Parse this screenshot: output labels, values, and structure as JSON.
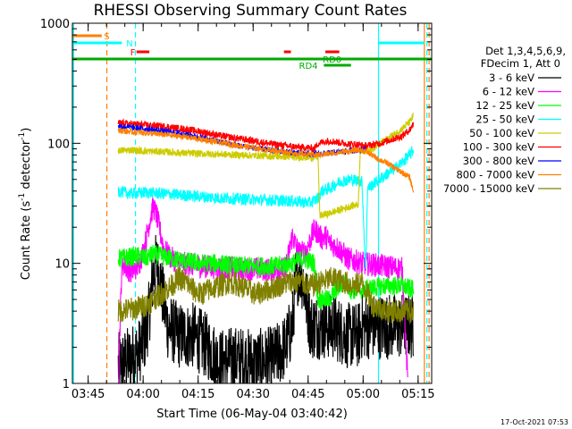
{
  "chart_data": {
    "type": "line",
    "title": "RHESSI Observing Summary Count Rates",
    "xlabel": "Start Time (06-May-04 03:40:42)",
    "ylabel": "Count Rate (s⁻¹ detector⁻¹)",
    "ylabel_parts": {
      "main": "Count Rate (s",
      "sup1": "-1",
      "mid": " detector",
      "sup2": "-1",
      "end": ")"
    },
    "yscale": "log",
    "ylim": [
      1,
      1000
    ],
    "xlim_minutes": [
      0,
      98
    ],
    "x_unit": "minutes after 03:40:42",
    "grid": false,
    "legend_position": "right",
    "legend_header": [
      "Det 1,3,4,5,6,9,",
      "FDecim 1, Att 0"
    ],
    "x_ticks": [
      {
        "label": "03:45",
        "min": 4.3
      },
      {
        "label": "04:00",
        "min": 19.3
      },
      {
        "label": "04:15",
        "min": 34.3
      },
      {
        "label": "04:30",
        "min": 49.3
      },
      {
        "label": "04:45",
        "min": 64.3
      },
      {
        "label": "05:00",
        "min": 79.3
      },
      {
        "label": "05:15",
        "min": 94.3
      }
    ],
    "y_ticks": [
      {
        "label": "1",
        "value": 1
      },
      {
        "label": "10",
        "value": 10
      },
      {
        "label": "100",
        "value": 100
      },
      {
        "label": "1000",
        "value": 1000
      }
    ],
    "series": [
      {
        "name": "3 - 6 keV",
        "color": "#000000",
        "noise": 0.28,
        "points": [
          [
            12.5,
            1.4
          ],
          [
            18,
            1.8
          ],
          [
            20,
            2.5
          ],
          [
            21,
            4
          ],
          [
            22,
            8
          ],
          [
            23,
            10
          ],
          [
            24,
            7
          ],
          [
            25,
            4.5
          ],
          [
            26,
            3
          ],
          [
            29,
            2.5
          ],
          [
            33,
            2.5
          ],
          [
            37,
            2
          ],
          [
            40,
            1.5
          ],
          [
            44,
            1.6
          ],
          [
            50,
            1.5
          ],
          [
            55,
            1.6
          ],
          [
            58,
            2
          ],
          [
            60,
            3
          ],
          [
            61,
            8
          ],
          [
            62,
            9
          ],
          [
            63,
            7
          ],
          [
            64,
            4.5
          ],
          [
            65,
            3
          ],
          [
            69,
            3
          ],
          [
            71,
            3
          ],
          [
            75,
            2.5
          ],
          [
            78,
            2.5
          ],
          [
            79,
            3
          ],
          [
            90,
            3
          ],
          [
            93,
            3
          ]
        ]
      },
      {
        "name": "6 - 12 keV",
        "color": "#ff00ff",
        "noise": 0.1,
        "points": [
          [
            12.5,
            1
          ],
          [
            13.5,
            10
          ],
          [
            16,
            8.5
          ],
          [
            18,
            9.5
          ],
          [
            19.5,
            13
          ],
          [
            21,
            22
          ],
          [
            22,
            30
          ],
          [
            23,
            25
          ],
          [
            24,
            18
          ],
          [
            25,
            13
          ],
          [
            27,
            11
          ],
          [
            30,
            10
          ],
          [
            35,
            9.5
          ],
          [
            40,
            9.2
          ],
          [
            45,
            9
          ],
          [
            50,
            9
          ],
          [
            55,
            8.8
          ],
          [
            58,
            9
          ],
          [
            59,
            12
          ],
          [
            60,
            17
          ],
          [
            61,
            14
          ],
          [
            62,
            12
          ],
          [
            64,
            13
          ],
          [
            65,
            16
          ],
          [
            66,
            19
          ],
          [
            67,
            18
          ],
          [
            68,
            16
          ],
          [
            69,
            17
          ],
          [
            70,
            15
          ],
          [
            73,
            13
          ],
          [
            75,
            11
          ],
          [
            79,
            10
          ],
          [
            85,
            9.5
          ],
          [
            90,
            9
          ],
          [
            91,
            2
          ],
          [
            91.5,
            1
          ]
        ]
      },
      {
        "name": "12 - 25 keV",
        "color": "#00ff00",
        "noise": 0.08,
        "points": [
          [
            12.5,
            11
          ],
          [
            18,
            11.5
          ],
          [
            20,
            11
          ],
          [
            22,
            12
          ],
          [
            24,
            11.5
          ],
          [
            27,
            11
          ],
          [
            30,
            10.5
          ],
          [
            35,
            10
          ],
          [
            40,
            10
          ],
          [
            45,
            9.5
          ],
          [
            50,
            9.5
          ],
          [
            55,
            9.5
          ],
          [
            60,
            10
          ],
          [
            63,
            11
          ],
          [
            66,
            10
          ],
          [
            67,
            5
          ],
          [
            68,
            5
          ],
          [
            70,
            5
          ],
          [
            72,
            6
          ],
          [
            74,
            7
          ],
          [
            76,
            6
          ],
          [
            79,
            6
          ],
          [
            85,
            6.5
          ],
          [
            90,
            6.5
          ],
          [
            93,
            6
          ]
        ]
      },
      {
        "name": "25 - 50 keV",
        "color": "#00ffff",
        "noise": 0.05,
        "points": [
          [
            12.5,
            40
          ],
          [
            16,
            38
          ],
          [
            20,
            39
          ],
          [
            25,
            38
          ],
          [
            30,
            37
          ],
          [
            35,
            36
          ],
          [
            40,
            35
          ],
          [
            45,
            34.5
          ],
          [
            50,
            34
          ],
          [
            55,
            33.5
          ],
          [
            60,
            33
          ],
          [
            65,
            32
          ],
          [
            67,
            35
          ],
          [
            68,
            40
          ],
          [
            70,
            42
          ],
          [
            73,
            48
          ],
          [
            76,
            50
          ],
          [
            79,
            48
          ],
          [
            80,
            8
          ],
          [
            80.5,
            42
          ],
          [
            83,
            48
          ],
          [
            86,
            56
          ],
          [
            89,
            65
          ],
          [
            92,
            80
          ],
          [
            93,
            88
          ]
        ]
      },
      {
        "name": "50 - 100 keV",
        "color": "#cccc00",
        "noise": 0.03,
        "points": [
          [
            12.5,
            87
          ],
          [
            16,
            88
          ],
          [
            20,
            86
          ],
          [
            25,
            85
          ],
          [
            30,
            83
          ],
          [
            35,
            82
          ],
          [
            40,
            81
          ],
          [
            45,
            80
          ],
          [
            50,
            79
          ],
          [
            55,
            78
          ],
          [
            60,
            77
          ],
          [
            65,
            76
          ],
          [
            67,
            77
          ],
          [
            67.5,
            25
          ],
          [
            70,
            26
          ],
          [
            73,
            28
          ],
          [
            76,
            30
          ],
          [
            78,
            31
          ],
          [
            78.5,
            86
          ],
          [
            82,
            90
          ],
          [
            86,
            110
          ],
          [
            89,
            125
          ],
          [
            92,
            150
          ],
          [
            93,
            170
          ]
        ]
      },
      {
        "name": "100 - 300 keV",
        "color": "#ff0000",
        "noise": 0.03,
        "points": [
          [
            12.5,
            148
          ],
          [
            16,
            145
          ],
          [
            20,
            142
          ],
          [
            25,
            138
          ],
          [
            30,
            132
          ],
          [
            35,
            125
          ],
          [
            40,
            116
          ],
          [
            45,
            110
          ],
          [
            50,
            104
          ],
          [
            55,
            98
          ],
          [
            60,
            94
          ],
          [
            64,
            92
          ],
          [
            66,
            90
          ],
          [
            67,
            100
          ],
          [
            70,
            105
          ],
          [
            74,
            100
          ],
          [
            78,
            97
          ],
          [
            80,
            95
          ],
          [
            84,
            100
          ],
          [
            88,
            110
          ],
          [
            90,
            115
          ],
          [
            92,
            130
          ],
          [
            93,
            145
          ]
        ]
      },
      {
        "name": "300 - 800 keV",
        "color": "#0000ff",
        "noise": 0.025,
        "points": [
          [
            12.5,
            140
          ],
          [
            16,
            135
          ],
          [
            20,
            132
          ],
          [
            25,
            126
          ],
          [
            30,
            120
          ],
          [
            35,
            112
          ],
          [
            40,
            103
          ],
          [
            45,
            96
          ],
          [
            50,
            91
          ],
          [
            55,
            87
          ],
          [
            60,
            84
          ],
          [
            64,
            82
          ],
          [
            66,
            81
          ],
          [
            68,
            82
          ],
          [
            72,
            84
          ],
          [
            76,
            87
          ],
          [
            79,
            88
          ],
          [
            80,
            93
          ]
        ]
      },
      {
        "name": "800 - 7000 keV",
        "color": "#ff8000",
        "noise": 0.025,
        "points": [
          [
            12.5,
            128
          ],
          [
            16,
            125
          ],
          [
            20,
            122
          ],
          [
            25,
            118
          ],
          [
            30,
            114
          ],
          [
            35,
            108
          ],
          [
            40,
            102
          ],
          [
            45,
            96
          ],
          [
            50,
            91
          ],
          [
            55,
            87
          ],
          [
            60,
            83
          ],
          [
            64,
            81
          ],
          [
            67,
            80
          ],
          [
            70,
            82
          ],
          [
            74,
            85
          ],
          [
            78,
            88
          ],
          [
            80,
            86
          ],
          [
            83,
            75
          ],
          [
            86,
            68
          ],
          [
            88,
            62
          ],
          [
            90,
            57
          ],
          [
            92,
            52
          ],
          [
            93,
            40
          ]
        ]
      },
      {
        "name": "7000 - 15000 keV",
        "color": "#808000",
        "noise": 0.1,
        "points": [
          [
            12.5,
            4
          ],
          [
            17,
            4.2
          ],
          [
            20,
            4.5
          ],
          [
            22,
            5
          ],
          [
            24,
            5.5
          ],
          [
            27,
            6.5
          ],
          [
            29,
            7.5
          ],
          [
            31,
            7
          ],
          [
            33,
            6
          ],
          [
            35,
            5.5
          ],
          [
            37,
            6
          ],
          [
            40,
            6.5
          ],
          [
            43,
            7
          ],
          [
            46,
            6.5
          ],
          [
            50,
            5.5
          ],
          [
            53,
            6
          ],
          [
            56,
            6.5
          ],
          [
            59,
            7
          ],
          [
            62,
            7
          ],
          [
            65,
            6.5
          ],
          [
            68,
            7
          ],
          [
            71,
            7.5
          ],
          [
            74,
            7
          ],
          [
            77,
            6.5
          ],
          [
            79,
            7
          ],
          [
            82,
            4.5
          ],
          [
            86,
            4
          ],
          [
            90,
            4
          ],
          [
            93,
            4
          ]
        ]
      }
    ],
    "flags": [
      {
        "label": "S",
        "color": "#ff8000",
        "row": 1,
        "segments": [
          [
            0,
            8
          ]
        ],
        "label_at": 8.6
      },
      {
        "label": "N",
        "color": "#00ffff",
        "row": 2,
        "segments": [
          [
            0,
            13.5
          ],
          [
            83.6,
            96
          ]
        ],
        "label_at": 14.7
      },
      {
        "label": "F",
        "color": "#ff0000",
        "row": 3,
        "segments": [
          [
            17.5,
            21
          ],
          [
            57.7,
            59.6
          ],
          [
            69,
            72.8
          ]
        ],
        "label_at": 15.8
      },
      {
        "label": "RD0",
        "color": "#00aa00",
        "row": 4,
        "segments": [
          [
            0,
            98
          ]
        ],
        "label_at": 68.3
      },
      {
        "label": "RD4",
        "color": "#00aa00",
        "row": 5,
        "segments": [
          [
            68.6,
            76
          ]
        ],
        "label_at": 61.8
      }
    ],
    "vlines": [
      {
        "min": 0.3,
        "color": "#00ffff",
        "style": "solid"
      },
      {
        "min": 9.4,
        "color": "#ff8000",
        "style": "dashed"
      },
      {
        "min": 17.2,
        "color": "#00ffff",
        "style": "dashed"
      },
      {
        "min": 83.5,
        "color": "#00ffff",
        "style": "solid"
      },
      {
        "min": 96.0,
        "color": "#ff8000",
        "style": "solid"
      },
      {
        "min": 96.7,
        "color": "#00ffff",
        "style": "dashed"
      },
      {
        "min": 97.3,
        "color": "#ff8000",
        "style": "dashed"
      }
    ]
  },
  "timestamp": "17-Oct-2021 07:53"
}
